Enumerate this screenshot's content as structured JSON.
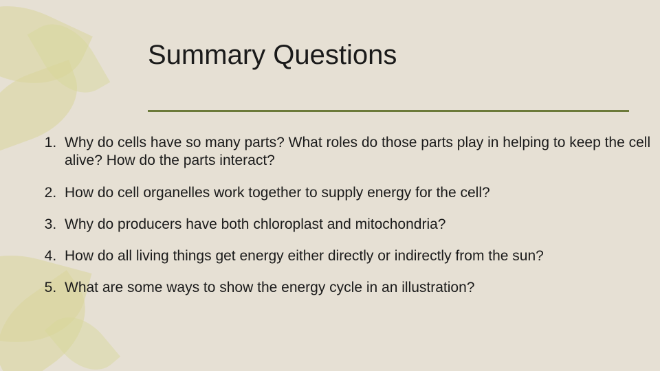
{
  "slide": {
    "title": "Summary Questions",
    "background_color": "#e6e0d4",
    "accent_color": "#6c7a3a",
    "leaf_color": "#d8d69a",
    "text_color": "#1a1a1a",
    "title_fontsize": 40,
    "body_fontsize": 21,
    "questions": [
      "Why do cells have so many parts?  What roles do those parts play in helping to keep the cell alive?  How do the parts interact?",
      "How do cell organelles work together to supply energy for the cell?",
      "Why do producers have both chloroplast and mitochondria?",
      "How do all living things get energy either directly or indirectly from the sun?",
      "What are some ways to show the energy cycle in an illustration?"
    ]
  }
}
